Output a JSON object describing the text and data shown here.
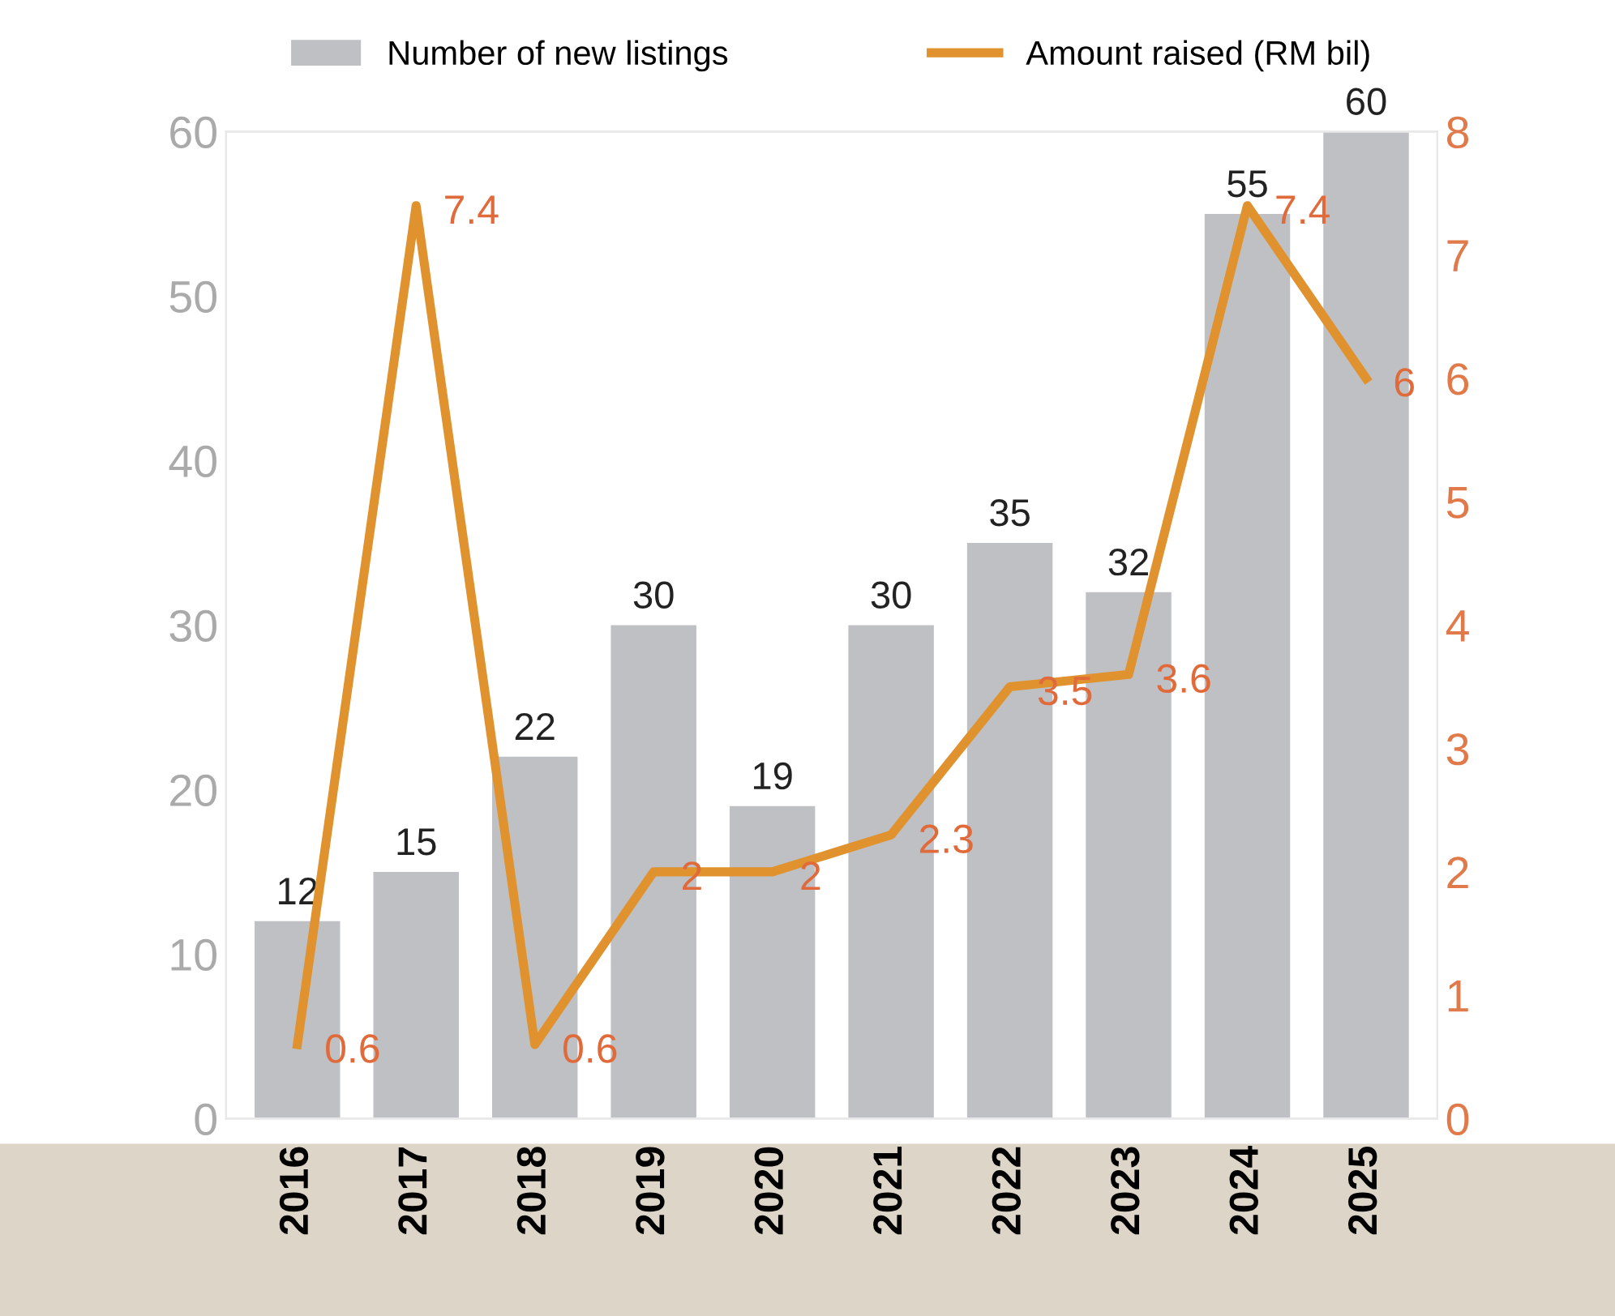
{
  "chart_data": {
    "type": "bar",
    "categories": [
      "2016",
      "2017",
      "2018",
      "2019",
      "2020",
      "2021",
      "2022",
      "2023",
      "2024",
      "2025"
    ],
    "series": [
      {
        "name": "Number of new listings",
        "color": "#bfc0c3",
        "values": [
          12,
          15,
          22,
          30,
          19,
          30,
          35,
          32,
          55,
          60
        ]
      },
      {
        "name": "Amount raised (RM bil)",
        "type": "line",
        "axis": "y2",
        "color": "#e0922e",
        "values": [
          0.6,
          7.4,
          0.6,
          2,
          2,
          2.3,
          3.5,
          3.6,
          7.4,
          6
        ]
      }
    ],
    "ylim": [
      0,
      60
    ],
    "yticks": [
      0,
      10,
      20,
      30,
      40,
      50,
      60
    ],
    "y2lim": [
      0,
      8
    ],
    "y2ticks": [
      0,
      1,
      2,
      3,
      4,
      5,
      6,
      7,
      8
    ],
    "data_labels": true,
    "legend": "top",
    "grid": false,
    "marker": "none",
    "line_style": "solid"
  }
}
